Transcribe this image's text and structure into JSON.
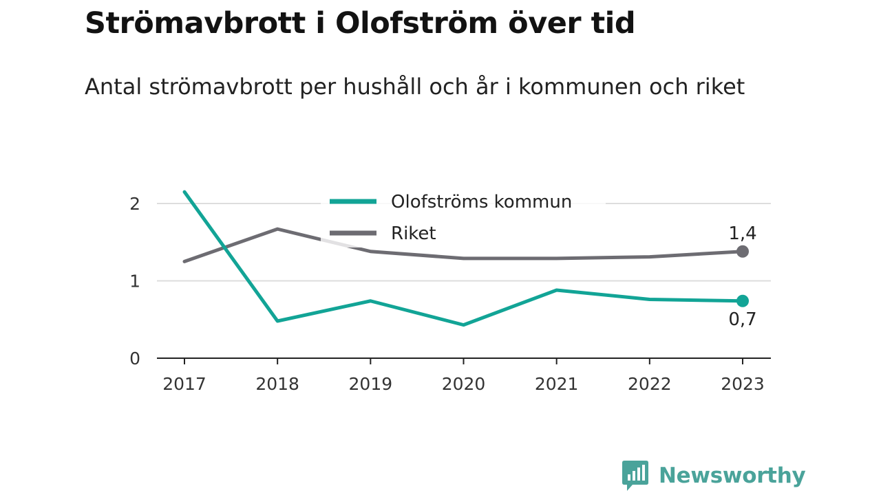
{
  "title": "Strömavbrott i Olofström över tid",
  "subtitle": "Antal strömavbrott per hushåll och år i kommunen och riket",
  "brand": {
    "name": "Newsworthy",
    "color": "#4aa39a",
    "icon": "bar-chart-speech-bubble-icon"
  },
  "chart_data": {
    "type": "line",
    "x": [
      "2017",
      "2018",
      "2019",
      "2020",
      "2021",
      "2022",
      "2023"
    ],
    "ylim": [
      0,
      2.3
    ],
    "yticks": [
      0,
      1,
      2
    ],
    "ytick_labels": [
      "0",
      "1",
      "2"
    ],
    "grid": true,
    "legend_position": "top",
    "series": [
      {
        "name": "Olofströms kommun",
        "color": "#12a496",
        "values": [
          2.15,
          0.48,
          0.74,
          0.43,
          0.88,
          0.76,
          0.74
        ],
        "end_label": "0,7"
      },
      {
        "name": "Riket",
        "color": "#6d6c72",
        "values": [
          1.25,
          1.67,
          1.38,
          1.29,
          1.29,
          1.31,
          1.38
        ],
        "end_label": "1,4"
      }
    ]
  }
}
